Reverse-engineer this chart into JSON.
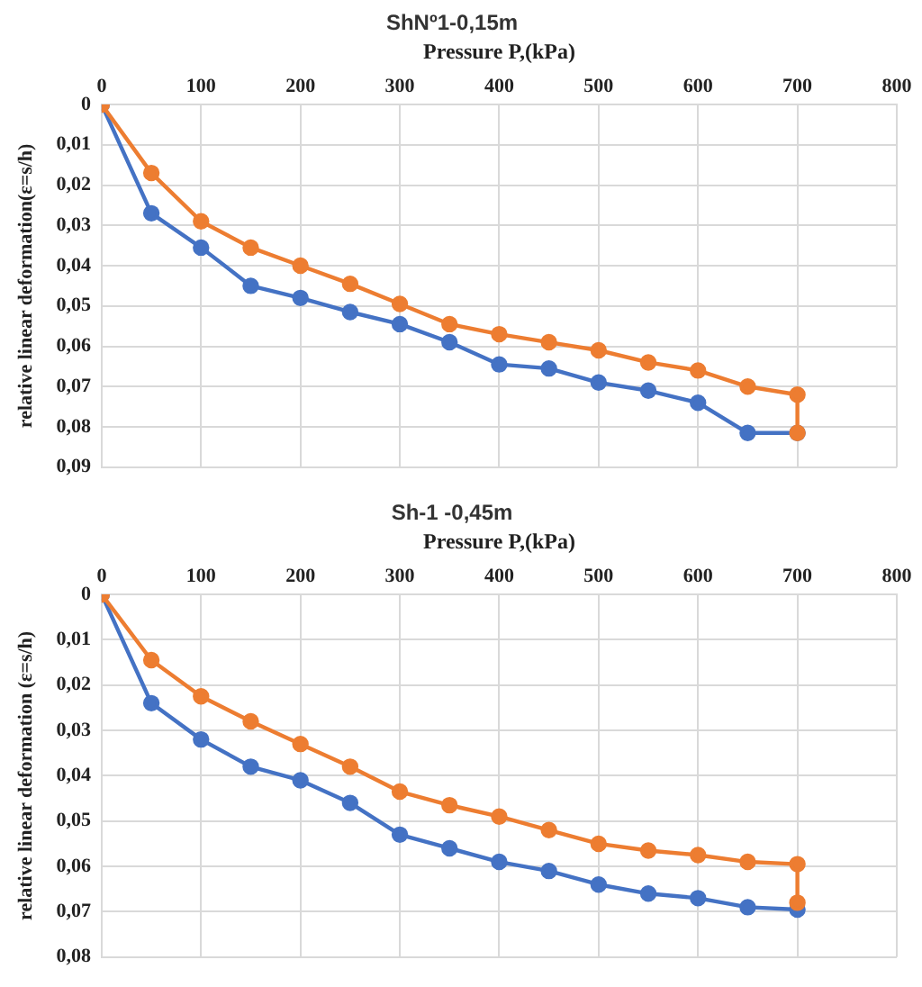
{
  "chart_data": [
    {
      "type": "line",
      "title": "ShNº1-0,15m",
      "xlabel": "Pressure P,(kPa)",
      "ylabel": "relative linear deformation(ε=s/h)",
      "xlim": [
        0,
        800
      ],
      "xticks": [
        0,
        100,
        200,
        300,
        400,
        500,
        600,
        700,
        800
      ],
      "ylim": [
        0.09,
        0
      ],
      "yticks": [
        0,
        {
          "value": 0.01,
          "label": "0,01"
        },
        {
          "value": 0.02,
          "label": "0,02"
        },
        {
          "value": 0.03,
          "label": "0,03"
        },
        {
          "value": 0.04,
          "label": "0,04"
        },
        {
          "value": 0.05,
          "label": "0,05"
        },
        {
          "value": 0.06,
          "label": "0,06"
        },
        {
          "value": 0.07,
          "label": "0,07"
        },
        {
          "value": 0.08,
          "label": "0,08"
        },
        {
          "value": 0.09,
          "label": "0,09"
        }
      ],
      "grid": true,
      "marker": "circle",
      "line_style": "solid",
      "series": [
        {
          "color": "#4472c4",
          "x": [
            0,
            50,
            100,
            150,
            200,
            250,
            300,
            350,
            400,
            450,
            500,
            550,
            600,
            650,
            700
          ],
          "values": [
            0,
            0.027,
            0.0355,
            0.045,
            0.048,
            0.0515,
            0.0545,
            0.059,
            0.0645,
            0.0655,
            0.069,
            0.071,
            0.074,
            0.0815,
            0.0815
          ]
        },
        {
          "color": "#ed7d31",
          "x": [
            0,
            50,
            100,
            150,
            200,
            250,
            300,
            350,
            400,
            450,
            500,
            550,
            600,
            650,
            700,
            700
          ],
          "values": [
            0,
            0.017,
            0.029,
            0.0355,
            0.04,
            0.0445,
            0.0495,
            0.0545,
            0.057,
            0.059,
            0.061,
            0.064,
            0.066,
            0.07,
            0.072,
            0.0815
          ]
        }
      ]
    },
    {
      "type": "line",
      "title": "Sh-1 -0,45m",
      "xlabel": "Pressure P,(kPa)",
      "ylabel": "relative linear deformation (ε=s/h)",
      "xlim": [
        0,
        800
      ],
      "xticks": [
        0,
        100,
        200,
        300,
        400,
        500,
        600,
        700,
        800
      ],
      "ylim": [
        0.08,
        0
      ],
      "yticks": [
        0,
        {
          "value": 0.01,
          "label": "0,01"
        },
        {
          "value": 0.02,
          "label": "0,02"
        },
        {
          "value": 0.03,
          "label": "0,03"
        },
        {
          "value": 0.04,
          "label": "0,04"
        },
        {
          "value": 0.05,
          "label": "0,05"
        },
        {
          "value": 0.06,
          "label": "0,06"
        },
        {
          "value": 0.07,
          "label": "0,07"
        },
        {
          "value": 0.08,
          "label": "0,08"
        }
      ],
      "grid": true,
      "marker": "circle",
      "line_style": "solid",
      "series": [
        {
          "color": "#4472c4",
          "x": [
            0,
            50,
            100,
            150,
            200,
            250,
            300,
            350,
            400,
            450,
            500,
            550,
            600,
            650,
            700
          ],
          "values": [
            0,
            0.024,
            0.032,
            0.038,
            0.041,
            0.046,
            0.053,
            0.056,
            0.059,
            0.061,
            0.064,
            0.066,
            0.067,
            0.069,
            0.0695
          ]
        },
        {
          "color": "#ed7d31",
          "x": [
            0,
            50,
            100,
            150,
            200,
            250,
            300,
            350,
            400,
            450,
            500,
            550,
            600,
            650,
            700,
            700
          ],
          "values": [
            0,
            0.0145,
            0.0225,
            0.028,
            0.033,
            0.038,
            0.0435,
            0.0465,
            0.049,
            0.052,
            0.055,
            0.0565,
            0.0575,
            0.059,
            0.0595,
            0.068
          ]
        }
      ]
    }
  ]
}
